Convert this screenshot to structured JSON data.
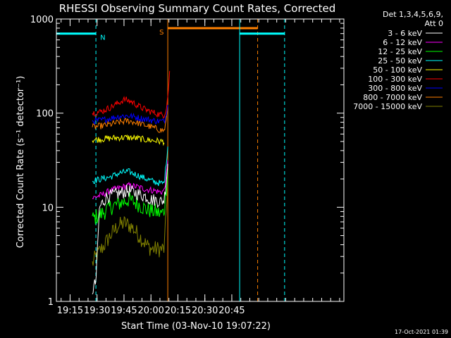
{
  "chart_data": {
    "type": "line",
    "title": "RHESSI Observing Summary Count Rates, Corrected",
    "xlabel": "Start Time (03-Nov-10 19:07:22)",
    "ylabel": "Corrected Count Rate (s⁻¹ detector⁻¹)",
    "y_scale": "log",
    "ylim": [
      1,
      1000
    ],
    "xlim_minutes": [
      0,
      160
    ],
    "x_ticks": [
      "19:15",
      "19:30",
      "19:45",
      "20:00",
      "20:15",
      "20:30",
      "20:45"
    ],
    "x_tick_minutes": [
      7.63,
      22.63,
      37.63,
      52.63,
      67.63,
      82.63,
      97.63
    ],
    "y_ticks": [
      "1",
      "10",
      "100",
      "1000"
    ],
    "y_tick_values": [
      1,
      10,
      100,
      1000
    ],
    "legend_header": [
      "Det 1,3,4,5,6,9,",
      "Att 0"
    ],
    "legend_placement": "right",
    "footer_date": "17-Oct-2021 01:39",
    "series": [
      {
        "name": "3 - 6 keV",
        "color": "#ffffff",
        "points": [
          [
            20,
            1.3
          ],
          [
            22,
            1.6
          ],
          [
            24,
            10
          ],
          [
            28,
            13
          ],
          [
            35,
            14
          ],
          [
            40,
            15
          ],
          [
            45,
            14
          ],
          [
            50,
            13
          ],
          [
            53,
            12
          ],
          [
            55,
            12
          ],
          [
            58,
            11.5
          ],
          [
            60,
            12
          ],
          [
            61,
            18
          ],
          [
            62,
            30
          ]
        ]
      },
      {
        "name": "6 - 12 keV",
        "color": "#ff00ff",
        "points": [
          [
            20,
            12.5
          ],
          [
            25,
            13.5
          ],
          [
            30,
            15
          ],
          [
            35,
            16
          ],
          [
            40,
            17
          ],
          [
            45,
            16.5
          ],
          [
            50,
            15.5
          ],
          [
            55,
            15
          ],
          [
            58,
            14.5
          ],
          [
            60,
            15
          ],
          [
            61,
            20
          ],
          [
            62,
            30
          ]
        ]
      },
      {
        "name": "12 - 25 keV",
        "color": "#00ff00",
        "points": [
          [
            20,
            7.5
          ],
          [
            25,
            8.5
          ],
          [
            30,
            10
          ],
          [
            35,
            11
          ],
          [
            40,
            12
          ],
          [
            45,
            11
          ],
          [
            50,
            9.5
          ],
          [
            55,
            9
          ],
          [
            58,
            8.5
          ],
          [
            60,
            9
          ],
          [
            61,
            15
          ],
          [
            62,
            25
          ]
        ]
      },
      {
        "name": "25 - 50 keV",
        "color": "#00ffff",
        "points": [
          [
            20,
            19
          ],
          [
            25,
            20
          ],
          [
            30,
            21
          ],
          [
            35,
            23
          ],
          [
            40,
            24
          ],
          [
            45,
            22
          ],
          [
            50,
            20
          ],
          [
            55,
            18.5
          ],
          [
            58,
            18
          ],
          [
            60,
            18
          ],
          [
            61,
            28
          ],
          [
            62,
            45
          ]
        ]
      },
      {
        "name": "50 - 100 keV",
        "color": "#ffff00",
        "points": [
          [
            20,
            52
          ],
          [
            25,
            53
          ],
          [
            30,
            54
          ],
          [
            35,
            55
          ],
          [
            40,
            55
          ],
          [
            45,
            54
          ],
          [
            50,
            52
          ],
          [
            55,
            51
          ],
          [
            58,
            50
          ],
          [
            60,
            50
          ]
        ]
      },
      {
        "name": "100 - 300 keV",
        "color": "#ff0000",
        "points": [
          [
            20,
            100
          ],
          [
            25,
            104
          ],
          [
            30,
            115
          ],
          [
            35,
            130
          ],
          [
            38,
            140
          ],
          [
            42,
            132
          ],
          [
            46,
            118
          ],
          [
            50,
            108
          ],
          [
            55,
            100
          ],
          [
            58,
            96
          ],
          [
            60,
            96
          ],
          [
            61,
            110
          ],
          [
            62,
            150
          ],
          [
            63,
            270
          ]
        ]
      },
      {
        "name": "300 - 800 keV",
        "color": "#0000ff",
        "points": [
          [
            20,
            82
          ],
          [
            25,
            84
          ],
          [
            30,
            88
          ],
          [
            35,
            93
          ],
          [
            40,
            94
          ],
          [
            45,
            90
          ],
          [
            50,
            86
          ],
          [
            55,
            83
          ],
          [
            58,
            82
          ],
          [
            60,
            82
          ],
          [
            61,
            95
          ],
          [
            62,
            130
          ]
        ]
      },
      {
        "name": "800 - 7000 keV",
        "color": "#ff8000",
        "points": [
          [
            20,
            71
          ],
          [
            25,
            73
          ],
          [
            30,
            76
          ],
          [
            35,
            80
          ],
          [
            40,
            83
          ],
          [
            45,
            79
          ],
          [
            50,
            74
          ],
          [
            55,
            69
          ],
          [
            58,
            66
          ],
          [
            60,
            65
          ],
          [
            61,
            80
          ],
          [
            62,
            110
          ]
        ]
      },
      {
        "name": "7000 - 15000 keV",
        "color": "#808000",
        "points": [
          [
            20,
            2.5
          ],
          [
            22,
            3
          ],
          [
            26,
            3.8
          ],
          [
            30,
            5
          ],
          [
            34,
            6.3
          ],
          [
            38,
            6.8
          ],
          [
            42,
            6.2
          ],
          [
            46,
            5
          ],
          [
            50,
            4
          ],
          [
            53,
            3.6
          ],
          [
            55,
            3.6
          ],
          [
            58,
            3.6
          ],
          [
            60,
            3.6
          ],
          [
            61,
            8
          ],
          [
            62,
            20
          ]
        ]
      }
    ],
    "annotations": [
      {
        "label": "N",
        "color": "#00ffff",
        "level": 700,
        "from": 0,
        "to": 22,
        "lines": [
          {
            "x": 0,
            "style": "solid"
          },
          {
            "x": 22,
            "style": "dashed"
          }
        ]
      },
      {
        "label": "S",
        "color": "#ff8000",
        "level": 800,
        "from": 62,
        "to": 112,
        "lines": [
          {
            "x": 62,
            "style": "solid"
          },
          {
            "x": 112,
            "style": "dashed"
          }
        ]
      },
      {
        "label": "",
        "color": "#00ffff",
        "level": 700,
        "from": 102,
        "to": 127,
        "lines": [
          {
            "x": 102,
            "style": "solid"
          },
          {
            "x": 127,
            "style": "dashed"
          }
        ]
      }
    ]
  }
}
